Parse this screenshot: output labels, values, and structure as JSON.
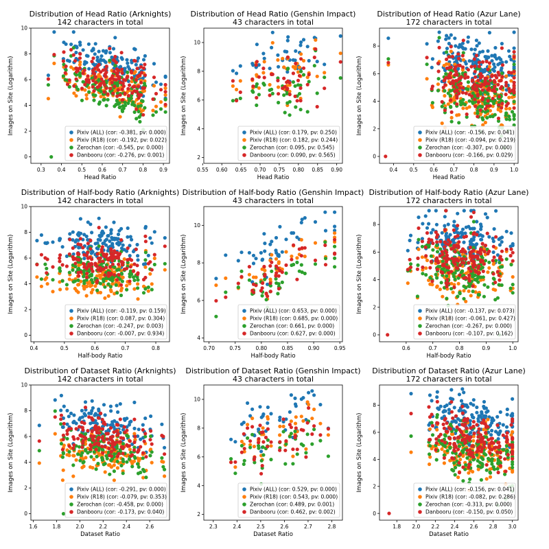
{
  "figure": {
    "series_colors": {
      "pixiv_all": "#1f77b4",
      "pixiv_r18": "#ff7f0e",
      "zerochan": "#2ca02c",
      "danbooru": "#d62728"
    },
    "legend_placement": "lower-right"
  },
  "chart_data": [
    {
      "type": "scatter",
      "title": "Distribution of Head Ratio (Arknights)",
      "subtitle": "142 characters in total",
      "xlabel": "Head Ratio",
      "ylabel": "Images on Site (Logarithm)",
      "xlim": [
        0.25,
        0.93
      ],
      "ylim": [
        -0.5,
        10
      ],
      "xticks": [
        "0.3",
        "0.4",
        "0.5",
        "0.6",
        "0.7",
        "0.8",
        "0.9"
      ],
      "xtick_values": [
        0.3,
        0.4,
        0.5,
        0.6,
        0.7,
        0.8,
        0.9
      ],
      "yticks": [
        "0",
        "2",
        "4",
        "6",
        "8",
        "10"
      ],
      "ytick_values": [
        0,
        2,
        4,
        6,
        8,
        10
      ],
      "legend": [
        "Pixiv (ALL) (cor: -0.381, pv: 0.000)",
        "Pixiv (R18) (cor: -0.192, pv: 0.022)",
        "Zerochan (cor: -0.545, pv: 0.000)",
        "Danbooru (cor: -0.276, pv: 0.001)"
      ],
      "x_range": [
        0.28,
        0.91
      ],
      "x_center": 0.65,
      "series_means": [
        7.0,
        5.3,
        5.0,
        5.9
      ],
      "slopes": [
        -4.0,
        -2.0,
        -5.0,
        -3.0
      ],
      "spread": 1.0,
      "n_points": 142,
      "extra_points": [
        {
          "x": 0.35,
          "y": 0.0,
          "series": 2
        }
      ]
    },
    {
      "type": "scatter",
      "title": "Distribution of Head Ratio (Genshin Impact)",
      "subtitle": "43 characters in total",
      "xlabel": "Head Ratio",
      "ylabel": "Images on Site (Logarithm)",
      "xlim": [
        0.553,
        0.915
      ],
      "ylim": [
        1.6,
        11.0
      ],
      "xticks": [
        "0.55",
        "0.60",
        "0.65",
        "0.70",
        "0.75",
        "0.80",
        "0.85",
        "0.90"
      ],
      "xtick_values": [
        0.55,
        0.6,
        0.65,
        0.7,
        0.75,
        0.8,
        0.85,
        0.9
      ],
      "yticks": [
        "2",
        "4",
        "6",
        "8",
        "10"
      ],
      "ytick_values": [
        2,
        4,
        6,
        8,
        10
      ],
      "legend": [
        "Pixiv (ALL) (cor: 0.179, pv: 0.250)",
        "Pixiv (R18) (cor: 0.182, pv: 0.244)",
        "Zerochan (cor: 0.095, pv: 0.545)",
        "Danbooru (cor: 0.090, pv: 0.565)"
      ],
      "x_range": [
        0.56,
        0.91
      ],
      "x_center": 0.75,
      "series_means": [
        8.8,
        7.7,
        6.6,
        7.2
      ],
      "slopes": [
        4.0,
        4.0,
        2.0,
        2.0
      ],
      "spread": 1.0,
      "n_points": 43,
      "extra_points": []
    },
    {
      "type": "scatter",
      "title": "Distribution of Head Ratio (Azur Lane)",
      "subtitle": "172 characters in total",
      "xlabel": "Head Ratio",
      "ylabel": "Images on Site (Logarithm)",
      "xlim": [
        0.33,
        1.02
      ],
      "ylim": [
        -0.5,
        9.3
      ],
      "xticks": [
        "0.4",
        "0.5",
        "0.6",
        "0.7",
        "0.8",
        "0.9",
        "1.0"
      ],
      "xtick_values": [
        0.4,
        0.5,
        0.6,
        0.7,
        0.8,
        0.9,
        1.0
      ],
      "yticks": [
        "0",
        "2",
        "4",
        "6",
        "8"
      ],
      "ytick_values": [
        0,
        2,
        4,
        6,
        8
      ],
      "legend": [
        "Pixiv (ALL) (cor: -0.156, pv: 0.041)",
        "Pixiv (R18) (cor: -0.094, pv: 0.219)",
        "Zerochan (cor: -0.307, pv: 0.000)",
        "Danbooru (cor: -0.166, pv: 0.029)"
      ],
      "x_range": [
        0.36,
        1.0
      ],
      "x_center": 0.82,
      "series_means": [
        6.7,
        4.6,
        4.5,
        5.4
      ],
      "slopes": [
        -3.0,
        -2.0,
        -5.0,
        -3.0
      ],
      "spread": 1.2,
      "n_points": 172,
      "extra_points": [
        {
          "x": 0.95,
          "y": 0.6,
          "series": 2
        },
        {
          "x": 0.36,
          "y": 0.0,
          "series": 3
        }
      ]
    },
    {
      "type": "scatter",
      "title": "Distribution of Half-body Ratio (Arknights)",
      "subtitle": "142 characters in total",
      "xlabel": "Half-body Ratio",
      "ylabel": "Images on Site (Logarithm)",
      "xlim": [
        0.39,
        0.845
      ],
      "ylim": [
        -0.5,
        10
      ],
      "xticks": [
        "0.4",
        "0.5",
        "0.6",
        "0.7",
        "0.8"
      ],
      "xtick_values": [
        0.4,
        0.5,
        0.6,
        0.7,
        0.8
      ],
      "yticks": [
        "0",
        "2",
        "4",
        "6",
        "8",
        "10"
      ],
      "ytick_values": [
        0,
        2,
        4,
        6,
        8,
        10
      ],
      "legend": [
        "Pixiv (ALL) (cor: -0.119, pv: 0.159)",
        "Pixiv (R18) (cor: 0.087, pv: 0.304)",
        "Zerochan (cor: -0.247, pv: 0.003)",
        "Danbooru (cor: -0.007, pv: 0.934)"
      ],
      "x_range": [
        0.41,
        0.83
      ],
      "x_center": 0.62,
      "series_means": [
        7.2,
        4.5,
        5.0,
        5.9
      ],
      "slopes": [
        -1.0,
        1.0,
        -2.0,
        0.0
      ],
      "spread": 0.9,
      "n_points": 142,
      "extra_points": []
    },
    {
      "type": "scatter",
      "title": "Distribution of Half-body Ratio (Genshin Impact)",
      "subtitle": "43 characters in total",
      "xlabel": "Half-body Ratio",
      "ylabel": "Images on Site (Logarithm)",
      "xlim": [
        0.69,
        0.955
      ],
      "ylim": [
        3.8,
        11.0
      ],
      "xticks": [
        "0.70",
        "0.75",
        "0.80",
        "0.85",
        "0.90",
        "0.95"
      ],
      "xtick_values": [
        0.7,
        0.75,
        0.8,
        0.85,
        0.9,
        0.95
      ],
      "yticks": [
        "4",
        "6",
        "8",
        "10"
      ],
      "ytick_values": [
        4,
        6,
        8,
        10
      ],
      "legend": [
        "Pixiv (ALL) (cor: 0.653, pv: 0.000)",
        "Pixiv (R18) (cor: 0.685, pv: 0.000)",
        "Zerochan (cor: 0.661, pv: 0.000)",
        "Danbooru (cor: 0.627, pv: 0.000)"
      ],
      "x_range": [
        0.7,
        0.94
      ],
      "x_center": 0.82,
      "series_means": [
        8.7,
        7.6,
        6.9,
        7.3
      ],
      "slopes": [
        14.0,
        14.0,
        14.0,
        13.0
      ],
      "spread": 0.8,
      "n_points": 43,
      "extra_points": []
    },
    {
      "type": "scatter",
      "title": "Distribution of Half-body Ratio (Azur Lane)",
      "subtitle": "172 characters in total",
      "xlabel": "Half-body Ratio",
      "ylabel": "Images on Site (Logarithm)",
      "xlim": [
        0.5,
        1.02
      ],
      "ylim": [
        -0.5,
        9.3
      ],
      "xticks": [
        "0.6",
        "0.7",
        "0.8",
        "0.9",
        "1.0"
      ],
      "xtick_values": [
        0.6,
        0.7,
        0.8,
        0.9,
        1.0
      ],
      "yticks": [
        "0",
        "2",
        "4",
        "6",
        "8"
      ],
      "ytick_values": [
        0,
        2,
        4,
        6,
        8
      ],
      "legend": [
        "Pixiv (ALL) (cor: -0.137, pv: 0.073)",
        "Pixiv (R18) (cor: -0.061, pv: 0.427)",
        "Zerochan (cor: -0.267, pv: 0.000)",
        "Danbooru (cor: -0.107, pv: 0.162)"
      ],
      "x_range": [
        0.53,
        1.0
      ],
      "x_center": 0.82,
      "series_means": [
        6.8,
        4.6,
        4.6,
        5.6
      ],
      "slopes": [
        -2.0,
        -1.0,
        -4.0,
        -2.0
      ],
      "spread": 1.2,
      "n_points": 172,
      "extra_points": [
        {
          "x": 0.95,
          "y": 0.0,
          "series": 2
        },
        {
          "x": 0.53,
          "y": 0.0,
          "series": 3
        }
      ]
    },
    {
      "type": "scatter",
      "title": "Distribution of Dataset Ratio (Arknights)",
      "subtitle": "142 characters in total",
      "xlabel": "Dataset Ratio",
      "ylabel": "Images on Site (Logarithm)",
      "xlim": [
        1.58,
        2.77
      ],
      "ylim": [
        -0.5,
        10
      ],
      "xticks": [
        "1.6",
        "1.8",
        "2.0",
        "2.2",
        "2.4",
        "2.6"
      ],
      "xtick_values": [
        1.6,
        1.8,
        2.0,
        2.2,
        2.4,
        2.6
      ],
      "yticks": [
        "0",
        "2",
        "4",
        "6",
        "8",
        "10"
      ],
      "ytick_values": [
        0,
        2,
        4,
        6,
        8,
        10
      ],
      "legend": [
        "Pixiv (ALL) (cor: -0.291, pv: 0.000)",
        "Pixiv (R18) (cor: -0.079, pv: 0.353)",
        "Zerochan (cor: -0.458, pv: 0.000)",
        "Danbooru (cor: -0.173, pv: 0.040)"
      ],
      "x_range": [
        1.63,
        2.73
      ],
      "x_center": 2.2,
      "series_means": [
        7.0,
        4.7,
        5.0,
        5.9
      ],
      "slopes": [
        -1.5,
        -0.5,
        -2.0,
        -0.8
      ],
      "spread": 1.0,
      "n_points": 142,
      "extra_points": [
        {
          "x": 1.86,
          "y": 0.0,
          "series": 2
        }
      ]
    },
    {
      "type": "scatter",
      "title": "Distribution of Dataset Ratio (Genshin Impact)",
      "subtitle": "43 characters in total",
      "xlabel": "Dataset Ratio",
      "ylabel": "Images on Site (Logarithm)",
      "xlim": [
        2.26,
        2.845
      ],
      "ylim": [
        1.6,
        11.0
      ],
      "xticks": [
        "2.3",
        "2.4",
        "2.5",
        "2.6",
        "2.7",
        "2.8"
      ],
      "xtick_values": [
        2.3,
        2.4,
        2.5,
        2.6,
        2.7,
        2.8
      ],
      "yticks": [
        "2",
        "4",
        "6",
        "8",
        "10"
      ],
      "ytick_values": [
        2,
        4,
        6,
        8,
        10
      ],
      "legend": [
        "Pixiv (ALL) (cor: 0.529, pv: 0.000)",
        "Pixiv (R18) (cor: 0.543, pv: 0.000)",
        "Zerochan (cor: 0.489, pv: 0.001)",
        "Danbooru (cor: 0.462, pv: 0.002)"
      ],
      "x_range": [
        2.28,
        2.82
      ],
      "x_center": 2.55,
      "series_means": [
        8.6,
        7.6,
        6.6,
        7.2
      ],
      "slopes": [
        5.0,
        5.0,
        4.0,
        4.0
      ],
      "spread": 1.0,
      "n_points": 43,
      "extra_points": []
    },
    {
      "type": "scatter",
      "title": "Distribution of Dataset Ratio (Azur Lane)",
      "subtitle": "172 characters in total",
      "xlabel": "Dataset Ratio",
      "ylabel": "Images on Site (Logarithm)",
      "xlim": [
        1.62,
        3.06
      ],
      "ylim": [
        -0.5,
        9.5
      ],
      "xticks": [
        "1.8",
        "2.0",
        "2.2",
        "2.4",
        "2.6",
        "2.8",
        "3.0"
      ],
      "xtick_values": [
        1.8,
        2.0,
        2.2,
        2.4,
        2.6,
        2.8,
        3.0
      ],
      "yticks": [
        "0",
        "2",
        "4",
        "6",
        "8"
      ],
      "ytick_values": [
        0,
        2,
        4,
        6,
        8
      ],
      "legend": [
        "Pixiv (ALL) (cor: -0.156, pv: 0.041)",
        "Pixiv (R18) (cor: -0.082, pv: 0.286)",
        "Zerochan (cor: -0.313, pv: 0.000)",
        "Danbooru (cor: -0.150, pv: 0.050)"
      ],
      "x_range": [
        1.7,
        3.0
      ],
      "x_center": 2.6,
      "series_means": [
        6.7,
        4.6,
        4.5,
        5.5
      ],
      "slopes": [
        -1.5,
        -1.0,
        -2.5,
        -1.5
      ],
      "spread": 1.2,
      "n_points": 172,
      "extra_points": [
        {
          "x": 2.85,
          "y": 0.6,
          "series": 2
        },
        {
          "x": 1.72,
          "y": 0.0,
          "series": 3
        }
      ]
    }
  ]
}
